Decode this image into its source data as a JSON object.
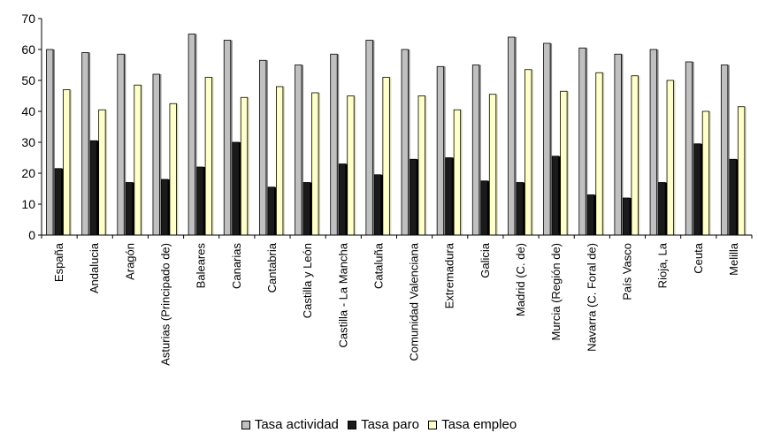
{
  "chart_data": {
    "type": "bar",
    "categories": [
      "España",
      "Andalucia",
      "Aragón",
      "Asturias (Principado de)",
      "Baleares",
      "Canarias",
      "Cantabria",
      "Castilla y León",
      "Castilla - La Mancha",
      "Cataluña",
      "Comunidad Valenciana",
      "Extremadura",
      "Galicia",
      "Madrid (C. de)",
      "Murcia (Región de)",
      "Navarra (C. Foral de)",
      "País Vasco",
      "Rioja, La",
      "Ceuta",
      "Melilla"
    ],
    "series": [
      {
        "name": "Tasa actividad",
        "color": "#c0c0c0",
        "values": [
          60,
          59,
          58.5,
          52,
          65,
          63,
          56.5,
          55,
          58.5,
          63,
          60,
          54.5,
          55,
          64,
          62,
          60.5,
          58.5,
          60,
          56,
          55
        ]
      },
      {
        "name": "Tasa paro",
        "color": "#1a1a1a",
        "values": [
          21.5,
          30.5,
          17,
          18,
          22,
          30,
          15.5,
          17,
          23,
          19.5,
          24.5,
          25,
          17.5,
          17,
          25.5,
          13,
          12,
          17,
          29.5,
          24.5
        ]
      },
      {
        "name": "Tasa empleo",
        "color": "#ffffcc",
        "values": [
          47,
          40.5,
          48.5,
          42.5,
          51,
          44.5,
          48,
          46,
          45,
          51,
          45,
          40.5,
          45.5,
          53.5,
          46.5,
          52.5,
          51.5,
          50,
          40,
          41.5
        ]
      }
    ],
    "xlabel": "",
    "ylabel": "",
    "ylim": [
      0,
      70
    ],
    "yticks": [
      "0",
      "10",
      "20",
      "30",
      "40",
      "50",
      "60",
      "70"
    ],
    "grid": false,
    "legend_position": "bottom-center"
  }
}
